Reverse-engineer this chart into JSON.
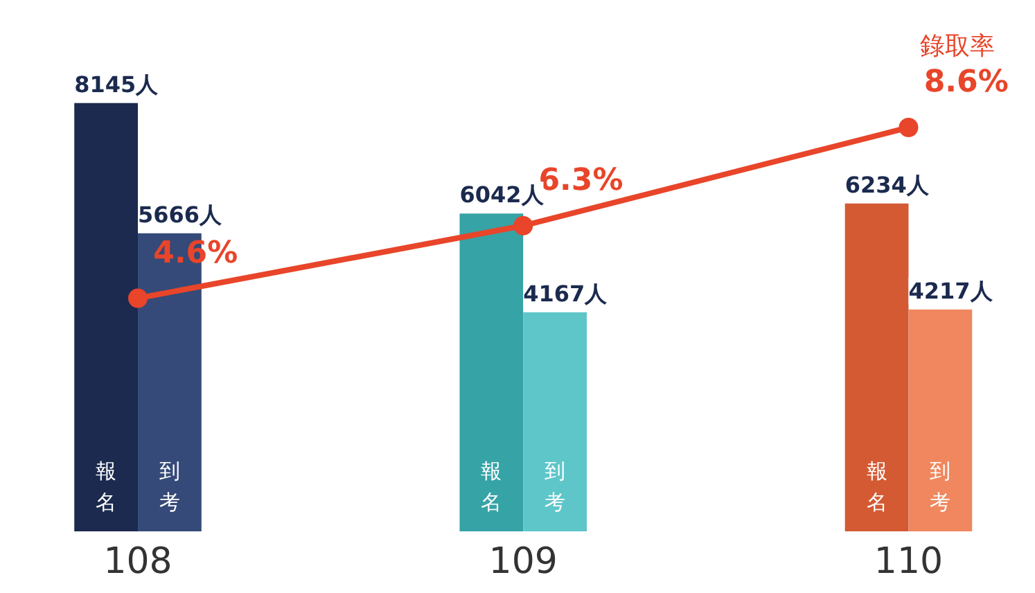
{
  "chart_data": {
    "type": "bar",
    "categories": [
      "108",
      "109",
      "110"
    ],
    "tick_labels": "x",
    "data_labels": true,
    "series": [
      {
        "name": "報名",
        "colors": [
          "#1b2a4e",
          "#36a3a6",
          "#d35a33"
        ],
        "values": [
          8145,
          6042,
          6234
        ],
        "value_labels": [
          "8145人",
          "6042人",
          "6234人"
        ]
      },
      {
        "name": "到考",
        "colors": [
          "#354a78",
          "#5ec6c9",
          "#f0875e"
        ],
        "values": [
          5666,
          4167,
          4217
        ],
        "value_labels": [
          "5666人",
          "4167人",
          "4217人"
        ]
      },
      {
        "name": "錄取率",
        "type": "line",
        "axis": "y2",
        "color": "#e8452a",
        "marker": "circle",
        "values": [
          4.6,
          6.3,
          8.6
        ],
        "value_labels": [
          "4.6%",
          "6.3%",
          "8.6%"
        ]
      }
    ]
  }
}
